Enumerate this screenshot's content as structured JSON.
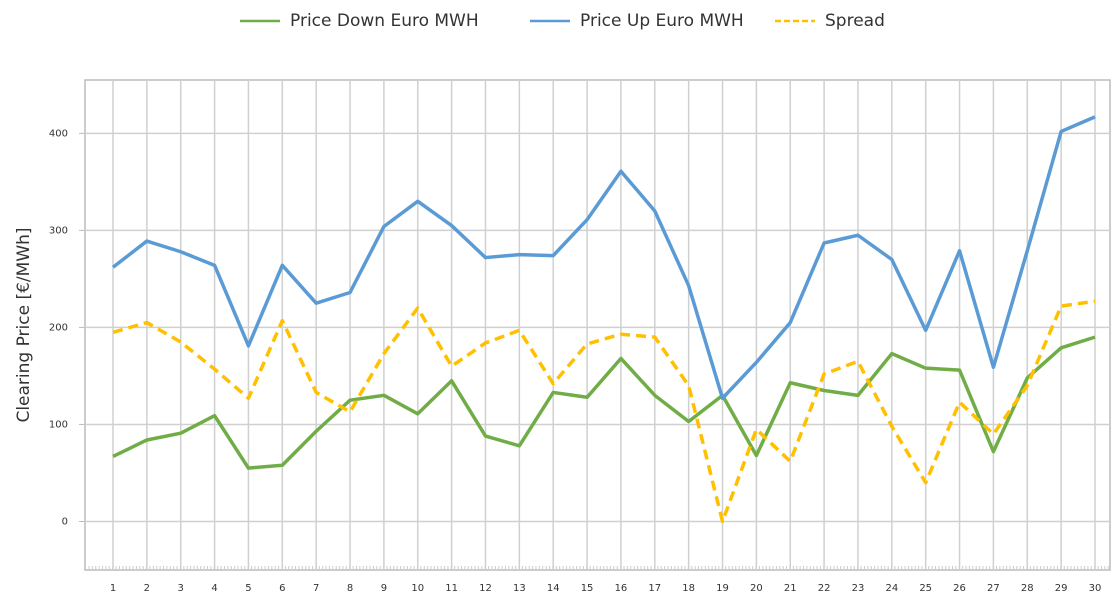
{
  "chart_data": {
    "type": "line",
    "y_label": "Clearing Price [€/MWh]",
    "categories": [
      "1",
      "2",
      "3",
      "4",
      "5",
      "6",
      "7",
      "8",
      "9",
      "10",
      "11",
      "12",
      "13",
      "14",
      "15",
      "16",
      "17",
      "18",
      "19",
      "20",
      "21",
      "22",
      "23",
      "24",
      "25",
      "26",
      "27",
      "28",
      "29",
      "30"
    ],
    "series": [
      {
        "name": "Price Down Euro MWH",
        "color": "#70ad47",
        "dash": false,
        "values": [
          67,
          84,
          91,
          109,
          55,
          58,
          93,
          125,
          130,
          111,
          145,
          88,
          78,
          133,
          128,
          168,
          130,
          103,
          130,
          68,
          143,
          135,
          130,
          173,
          158,
          156,
          72,
          148,
          179,
          190
        ]
      },
      {
        "name": "Price Up Euro MWH",
        "color": "#5b9bd5",
        "dash": false,
        "values": [
          262,
          289,
          278,
          264,
          181,
          264,
          225,
          236,
          304,
          330,
          305,
          272,
          275,
          274,
          311,
          361,
          320,
          243,
          127,
          164,
          205,
          287,
          295,
          270,
          197,
          279,
          159,
          279,
          402,
          417
        ]
      },
      {
        "name": "Spread",
        "color": "#ffc000",
        "dash": true,
        "values": [
          195,
          205,
          185,
          157,
          127,
          207,
          133,
          113,
          173,
          220,
          160,
          184,
          197,
          142,
          183,
          193,
          190,
          140,
          0,
          95,
          62,
          152,
          165,
          98,
          40,
          123,
          90,
          140,
          222,
          227
        ]
      }
    ],
    "ylim": [
      -50,
      455
    ],
    "yticks": [
      0,
      100,
      200,
      300,
      400
    ],
    "grid": true,
    "legend": "top"
  }
}
